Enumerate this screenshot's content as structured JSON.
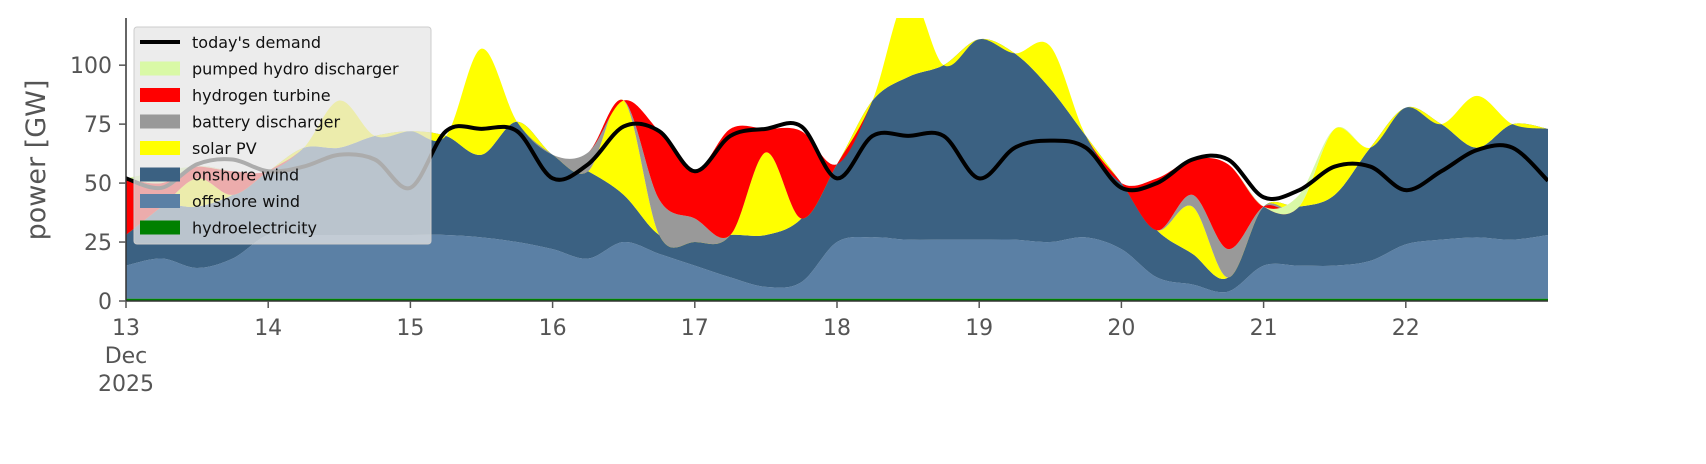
{
  "chart_data": {
    "type": "area",
    "ylabel": "power [GW]",
    "x": [
      13,
      13.25,
      13.5,
      13.75,
      14,
      14.25,
      14.5,
      14.75,
      15,
      15.25,
      15.5,
      15.75,
      16,
      16.25,
      16.5,
      16.75,
      17,
      17.25,
      17.5,
      17.75,
      18,
      18.25,
      18.5,
      18.75,
      19,
      19.25,
      19.5,
      19.75,
      20,
      20.25,
      20.5,
      20.75,
      21,
      21.25,
      21.5,
      21.75,
      22,
      22.25,
      22.5,
      22.75,
      23
    ],
    "xlim": [
      13,
      23
    ],
    "xticks": [
      {
        "value": 13,
        "label": "13 Dec 2025"
      },
      14,
      15,
      16,
      17,
      18,
      19,
      20,
      21,
      22
    ],
    "ylim": [
      0,
      120
    ],
    "yticks": [
      0,
      25,
      50,
      75,
      100
    ],
    "legend": "upper left",
    "series": [
      {
        "name": "today's demand",
        "type": "line",
        "color": "#000000",
        "values": [
          52,
          48,
          58,
          60,
          55,
          57,
          62,
          60,
          48,
          72,
          73,
          72,
          52,
          58,
          74,
          72,
          55,
          70,
          73,
          74,
          52,
          70,
          70,
          70,
          52,
          65,
          68,
          65,
          48,
          50,
          60,
          60,
          44,
          47,
          57,
          57,
          47,
          55,
          64,
          65,
          51
        ]
      },
      {
        "name": "pumped hydro discharger",
        "color": "#d9f9a6",
        "values": [
          0,
          5,
          0,
          0,
          0,
          0,
          0,
          0,
          0,
          0,
          0,
          0,
          0,
          0,
          0,
          0,
          0,
          0,
          0,
          0,
          0,
          0,
          0,
          0,
          0,
          0,
          0,
          0,
          0,
          0,
          0,
          0,
          0,
          5,
          0,
          0,
          0,
          0,
          0,
          0,
          0
        ]
      },
      {
        "name": "hydrogen turbine",
        "color": "#ff0000",
        "values": [
          24,
          10,
          5,
          10,
          0,
          0,
          0,
          0,
          0,
          0,
          0,
          0,
          0,
          0,
          0,
          29,
          20,
          45,
          10,
          37,
          0,
          0,
          0,
          0,
          0,
          0,
          0,
          0,
          0,
          22,
          15,
          36,
          0,
          0,
          0,
          0,
          0,
          0,
          0,
          0,
          0
        ]
      },
      {
        "name": "battery discharger",
        "color": "#999999",
        "values": [
          0,
          0,
          0,
          0,
          0,
          0,
          0,
          0,
          0,
          0,
          0,
          0,
          0,
          8,
          0,
          15,
          10,
          0,
          0,
          0,
          0,
          0,
          0,
          0,
          0,
          0,
          0,
          0,
          0,
          0,
          5,
          12,
          0,
          0,
          0,
          0,
          0,
          0,
          0,
          0,
          0
        ]
      },
      {
        "name": "solar PV",
        "color": "#ffff00",
        "values": [
          0,
          0,
          12,
          0,
          0,
          0,
          20,
          0,
          0,
          0,
          45,
          0,
          0,
          0,
          40,
          0,
          0,
          0,
          35,
          0,
          0,
          0,
          35,
          0,
          0,
          0,
          18,
          0,
          0,
          0,
          20,
          0,
          0,
          0,
          28,
          0,
          0,
          0,
          22,
          0,
          0
        ]
      },
      {
        "name": "onshore wind",
        "color": "#3b6182",
        "values": [
          13,
          22,
          26,
          27,
          27,
          37,
          37,
          42,
          44,
          42,
          35,
          51,
          40,
          37,
          20,
          8,
          10,
          18,
          22,
          27,
          33,
          58,
          69,
          74,
          85,
          79,
          65,
          43,
          28,
          20,
          13,
          6,
          25,
          25,
          30,
          48,
          58,
          49,
          38,
          49,
          45
        ]
      },
      {
        "name": "offshore wind",
        "color": "#5b80a5",
        "values": [
          14,
          17,
          13,
          17,
          27,
          27,
          27,
          27,
          27,
          27,
          26,
          24,
          21,
          17,
          24,
          19,
          14,
          9,
          5,
          7,
          24,
          26,
          25,
          25,
          25,
          25,
          24,
          26,
          21,
          9,
          6,
          3,
          14,
          14,
          14,
          16,
          23,
          25,
          26,
          25,
          27
        ]
      },
      {
        "name": "hydroelectricity",
        "color": "#008000",
        "values": [
          1,
          1,
          1,
          1,
          1,
          1,
          1,
          1,
          1,
          1,
          1,
          1,
          1,
          1,
          1,
          1,
          1,
          1,
          1,
          1,
          1,
          1,
          1,
          1,
          1,
          1,
          1,
          1,
          1,
          1,
          1,
          1,
          1,
          1,
          1,
          1,
          1,
          1,
          1,
          1,
          1
        ]
      }
    ]
  }
}
